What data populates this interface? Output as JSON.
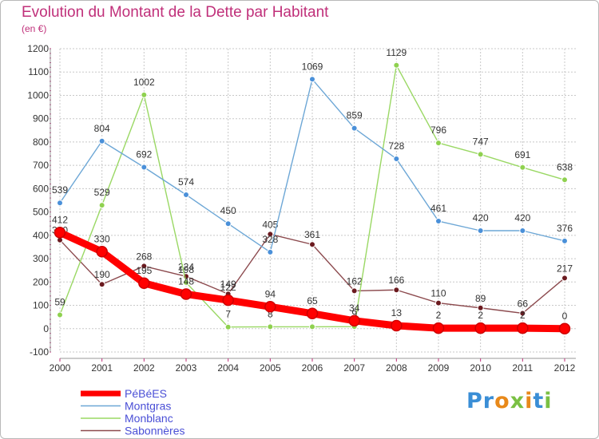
{
  "title": "Evolution du Montant de la Dette par Habitant",
  "subtitle": "(en €)",
  "logo_text": "Proxiti",
  "chart_data": {
    "type": "line",
    "title": "Evolution du Montant de la Dette par Habitant",
    "subtitle": "(en €)",
    "xlabel": "",
    "ylabel": "",
    "x": [
      "2000",
      "2001",
      "2002",
      "2003",
      "2004",
      "2005",
      "2006",
      "2007",
      "2008",
      "2009",
      "2010",
      "2011",
      "2012"
    ],
    "ylim": [
      -100,
      1200
    ],
    "yticks": [
      -100,
      0,
      100,
      200,
      300,
      400,
      500,
      600,
      700,
      800,
      900,
      1000,
      1100,
      1200
    ],
    "grid": true,
    "legend_position": "bottom-left",
    "series": [
      {
        "name": "Sabonnères",
        "color": "#6b1a1f",
        "line_color": "#8c4a4e",
        "values": [
          380,
          190,
          268,
          224,
          149,
          405,
          361,
          162,
          166,
          110,
          89,
          66,
          217
        ]
      },
      {
        "name": "Monblanc",
        "color": "#8fd14f",
        "line_color": "#9ad864",
        "values": [
          59,
          529,
          1002,
          198,
          7,
          8,
          8,
          9,
          1129,
          796,
          747,
          691,
          638
        ]
      },
      {
        "name": "Montgras",
        "color": "#4a90d9",
        "line_color": "#6da7d6",
        "values": [
          539,
          804,
          692,
          574,
          450,
          328,
          1069,
          859,
          728,
          461,
          420,
          420,
          376
        ]
      },
      {
        "name": "PéBéES",
        "color": "#ff0000",
        "line_color": "#ff0000",
        "values": [
          412,
          330,
          195,
          148,
          122,
          94,
          65,
          34,
          13,
          2,
          2,
          2,
          0
        ]
      }
    ]
  }
}
